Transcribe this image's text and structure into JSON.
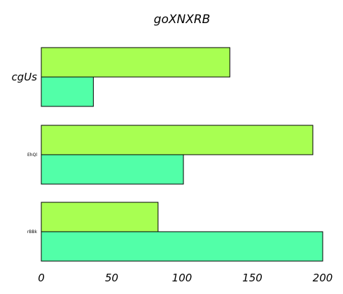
{
  "chart_data": {
    "type": "bar",
    "orientation": "horizontal",
    "title": "goXNXRB",
    "categories": [
      "cgUs",
      "EhQl",
      "rBBk"
    ],
    "series": [
      {
        "color": "#a8ff52",
        "values": [
          134,
          193,
          83
        ]
      },
      {
        "color": "#52ffa8",
        "values": [
          37,
          101,
          200
        ]
      }
    ],
    "xlim": [
      0,
      200
    ],
    "xticks": [
      0,
      50,
      100,
      150,
      200
    ],
    "xlabel": "",
    "ylabel": "",
    "grid": false,
    "legend": "none"
  }
}
